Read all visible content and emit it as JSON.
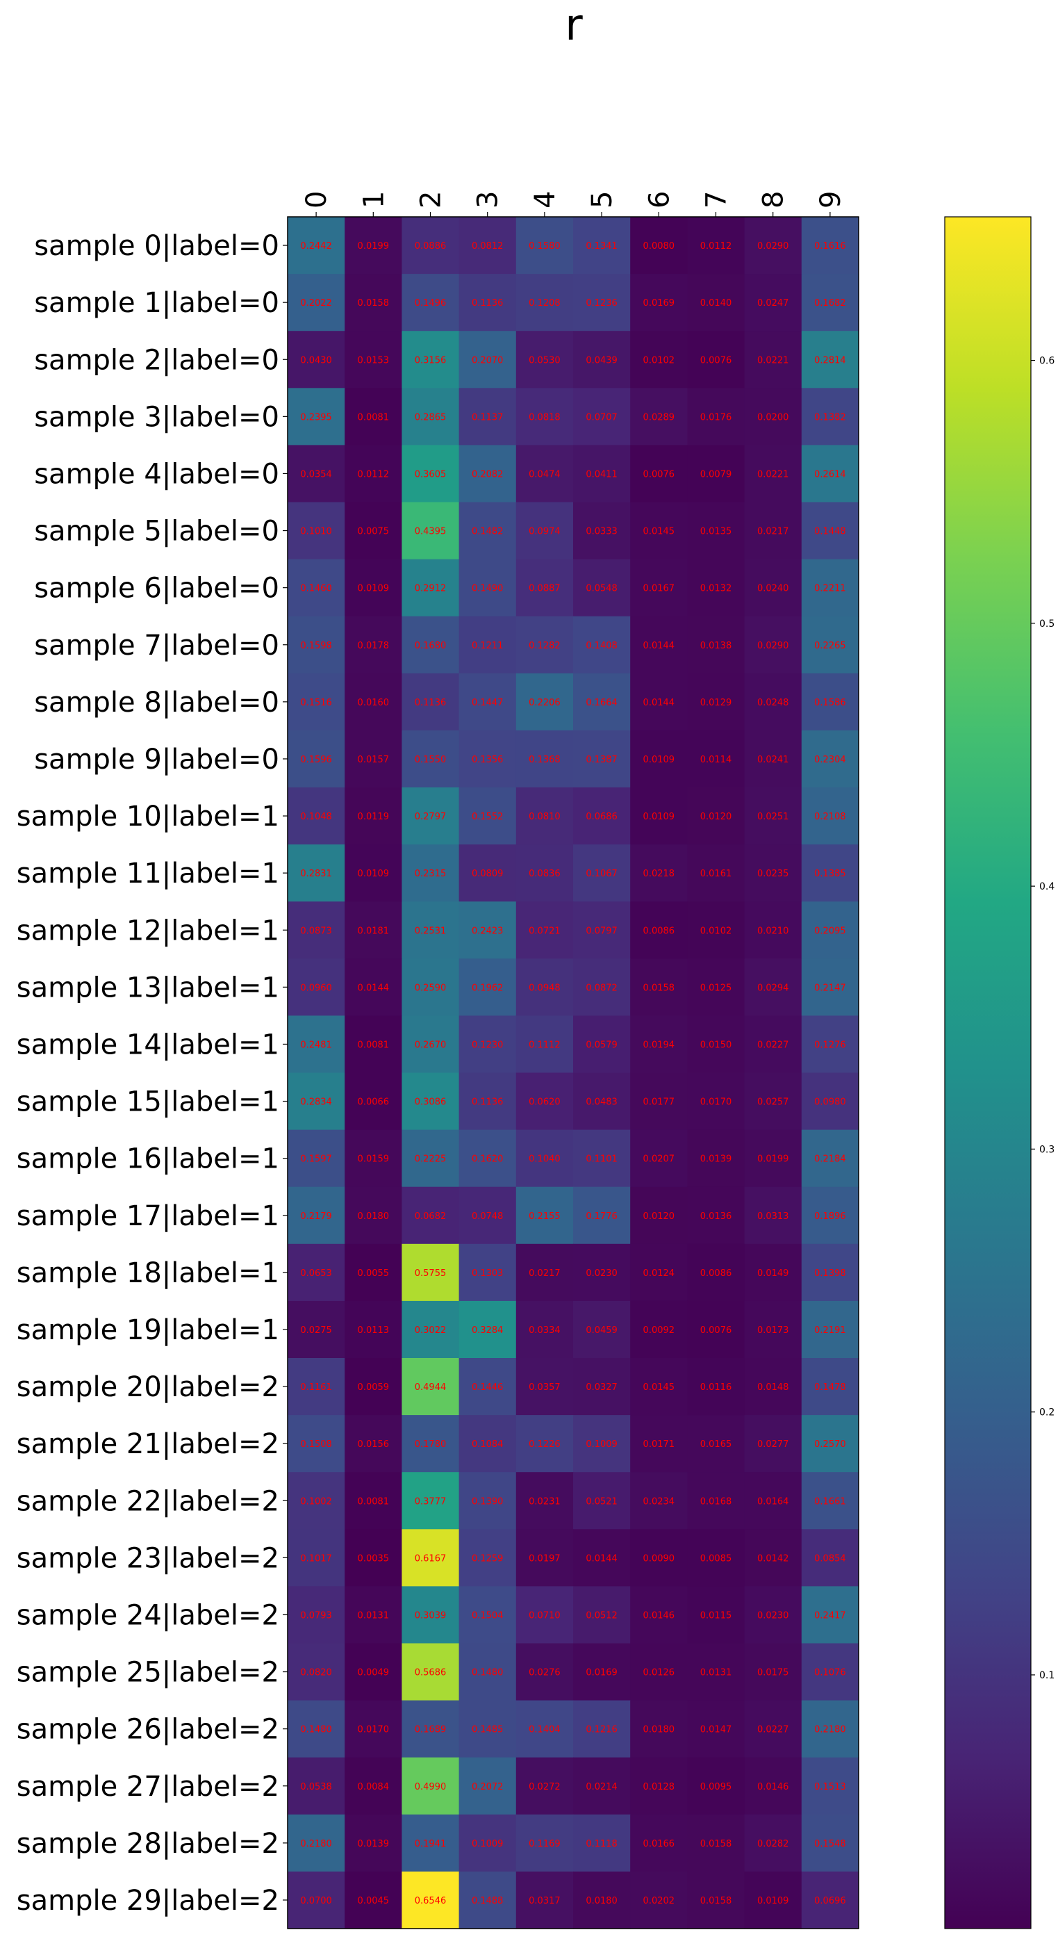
{
  "chart_data": {
    "type": "heatmap",
    "title": "r",
    "x_labels": [
      "0",
      "1",
      "2",
      "3",
      "4",
      "5",
      "6",
      "7",
      "8",
      "9"
    ],
    "y_labels": [
      "sample 0|label=0",
      "sample 1|label=0",
      "sample 2|label=0",
      "sample 3|label=0",
      "sample 4|label=0",
      "sample 5|label=0",
      "sample 6|label=0",
      "sample 7|label=0",
      "sample 8|label=0",
      "sample 9|label=0",
      "sample 10|label=1",
      "sample 11|label=1",
      "sample 12|label=1",
      "sample 13|label=1",
      "sample 14|label=1",
      "sample 15|label=1",
      "sample 16|label=1",
      "sample 17|label=1",
      "sample 18|label=1",
      "sample 19|label=1",
      "sample 20|label=2",
      "sample 21|label=2",
      "sample 22|label=2",
      "sample 23|label=2",
      "sample 24|label=2",
      "sample 25|label=2",
      "sample 26|label=2",
      "sample 27|label=2",
      "sample 28|label=2",
      "sample 29|label=2"
    ],
    "values": [
      [
        0.2442,
        0.0199,
        0.0886,
        0.0812,
        0.158,
        0.1341,
        0.008,
        0.0112,
        0.029,
        0.1616
      ],
      [
        0.2022,
        0.0158,
        0.1496,
        0.1136,
        0.1208,
        0.1236,
        0.0169,
        0.014,
        0.0247,
        0.1682
      ],
      [
        0.043,
        0.0153,
        0.3156,
        0.207,
        0.053,
        0.0439,
        0.0102,
        0.0076,
        0.0221,
        0.2814
      ],
      [
        0.2395,
        0.0081,
        0.2865,
        0.1137,
        0.0818,
        0.0707,
        0.0289,
        0.0176,
        0.02,
        0.1382
      ],
      [
        0.0354,
        0.0112,
        0.3605,
        0.2082,
        0.0474,
        0.0411,
        0.0076,
        0.0079,
        0.0221,
        0.2614
      ],
      [
        0.101,
        0.0075,
        0.4395,
        0.1482,
        0.0974,
        0.0333,
        0.0145,
        0.0135,
        0.0217,
        0.1448
      ],
      [
        0.146,
        0.0109,
        0.2912,
        0.149,
        0.0887,
        0.0548,
        0.0167,
        0.0132,
        0.024,
        0.2211
      ],
      [
        0.1598,
        0.0178,
        0.168,
        0.1211,
        0.1282,
        0.1408,
        0.0144,
        0.0138,
        0.029,
        0.2265
      ],
      [
        0.1516,
        0.016,
        0.1136,
        0.1447,
        0.2206,
        0.1664,
        0.0144,
        0.0129,
        0.0248,
        0.1586
      ],
      [
        0.1596,
        0.0157,
        0.155,
        0.1356,
        0.1368,
        0.1387,
        0.0109,
        0.0114,
        0.0241,
        0.2304
      ],
      [
        0.1048,
        0.0119,
        0.2797,
        0.1552,
        0.081,
        0.0686,
        0.0109,
        0.012,
        0.0251,
        0.2108
      ],
      [
        0.2831,
        0.0109,
        0.2315,
        0.0809,
        0.0836,
        0.1067,
        0.0218,
        0.0161,
        0.0235,
        0.1385
      ],
      [
        0.0873,
        0.0181,
        0.2531,
        0.2423,
        0.0721,
        0.0797,
        0.0086,
        0.0102,
        0.021,
        0.2095
      ],
      [
        0.096,
        0.0144,
        0.259,
        0.1962,
        0.0948,
        0.0872,
        0.0158,
        0.0125,
        0.0294,
        0.2147
      ],
      [
        0.2481,
        0.0081,
        0.267,
        0.123,
        0.1112,
        0.0579,
        0.0194,
        0.015,
        0.0227,
        0.1276
      ],
      [
        0.2834,
        0.0066,
        0.3086,
        0.1136,
        0.062,
        0.0483,
        0.0177,
        0.017,
        0.0257,
        0.098
      ],
      [
        0.1597,
        0.0159,
        0.2225,
        0.162,
        0.104,
        0.1101,
        0.0207,
        0.0139,
        0.0199,
        0.2184
      ],
      [
        0.2179,
        0.018,
        0.0682,
        0.0748,
        0.2155,
        0.1776,
        0.012,
        0.0136,
        0.0313,
        0.1896
      ],
      [
        0.0653,
        0.0055,
        0.5755,
        0.1303,
        0.0217,
        0.023,
        0.0124,
        0.0086,
        0.0149,
        0.1398
      ],
      [
        0.0275,
        0.0113,
        0.3022,
        0.3284,
        0.0334,
        0.0459,
        0.0092,
        0.0076,
        0.0173,
        0.2191
      ],
      [
        0.1161,
        0.0059,
        0.4944,
        0.1446,
        0.0357,
        0.0327,
        0.0145,
        0.0116,
        0.0148,
        0.1478
      ],
      [
        0.1508,
        0.0156,
        0.178,
        0.1084,
        0.1226,
        0.1009,
        0.0171,
        0.0165,
        0.0277,
        0.257
      ],
      [
        0.1002,
        0.0081,
        0.3777,
        0.139,
        0.0231,
        0.0521,
        0.0234,
        0.0168,
        0.0164,
        0.1661
      ],
      [
        0.1017,
        0.0035,
        0.6167,
        0.1259,
        0.0197,
        0.0144,
        0.009,
        0.0085,
        0.0142,
        0.0854
      ],
      [
        0.0793,
        0.0131,
        0.3039,
        0.1504,
        0.071,
        0.0512,
        0.0146,
        0.0115,
        0.023,
        0.2417
      ],
      [
        0.082,
        0.0049,
        0.5686,
        0.148,
        0.0276,
        0.0169,
        0.0126,
        0.0131,
        0.0175,
        0.1076
      ],
      [
        0.148,
        0.017,
        0.1689,
        0.1485,
        0.1404,
        0.1216,
        0.018,
        0.0147,
        0.0227,
        0.218
      ],
      [
        0.0538,
        0.0084,
        0.499,
        0.2072,
        0.0272,
        0.0214,
        0.0128,
        0.0095,
        0.0146,
        0.1513
      ],
      [
        0.218,
        0.0139,
        0.1941,
        0.1009,
        0.1169,
        0.1118,
        0.0166,
        0.0158,
        0.0282,
        0.1548
      ],
      [
        0.07,
        0.0045,
        0.6546,
        0.1488,
        0.0317,
        0.018,
        0.0202,
        0.0158,
        0.0109,
        0.0696
      ]
    ],
    "value_range": [
      0.0035,
      0.6546
    ],
    "colormap": "viridis",
    "annotation_color": "#ff0000",
    "colorbar": {
      "ticks": [
        0.1,
        0.2,
        0.3,
        0.4,
        0.5,
        0.6
      ],
      "tick_labels": [
        "0.1",
        "0.2",
        "0.3",
        "0.4",
        "0.5",
        "0.6"
      ]
    },
    "xlabel": "",
    "ylabel": "",
    "grid": false
  }
}
